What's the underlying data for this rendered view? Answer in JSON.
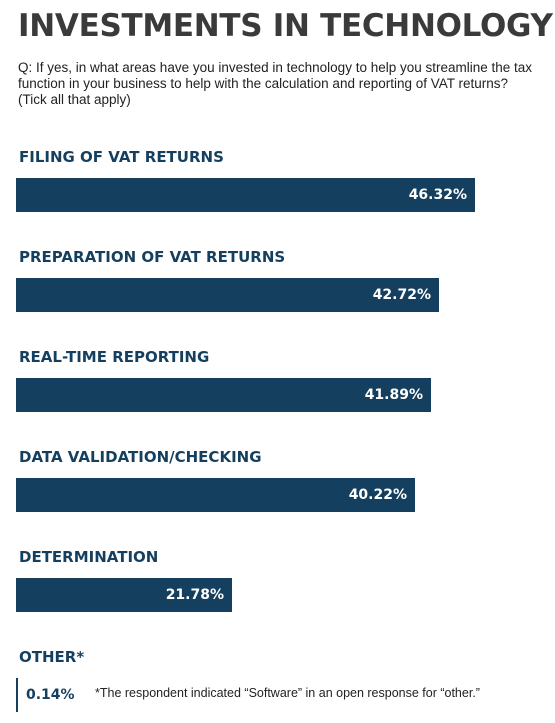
{
  "title": "INVESTMENTS IN TECHNOLOGY",
  "question": "Q: If yes, in what areas have you invested in technology to help you streamline the tax function in your business to help with the calculation and reporting of VAT returns? (Tick all that apply)",
  "footnote": "*The respondent indicated “Software” in an open response for “other.”",
  "colors": {
    "bar": "#143f5e",
    "label": "#143f5e",
    "title": "#3a3a3a"
  },
  "chart_data": {
    "type": "bar",
    "orientation": "horizontal",
    "categories": [
      "FILING OF VAT RETURNS",
      "PREPARATION OF VAT RETURNS",
      "REAL-TIME REPORTING",
      "DATA VALIDATION/CHECKING",
      "DETERMINATION",
      "OTHER*"
    ],
    "values": [
      46.32,
      42.72,
      41.89,
      40.22,
      21.78,
      0.14
    ],
    "value_labels": [
      "46.32%",
      "42.72%",
      "41.89%",
      "40.22%",
      "21.78%",
      "0.14%"
    ],
    "xlim": [
      0,
      46.32
    ],
    "grid": false,
    "legend": "none"
  }
}
